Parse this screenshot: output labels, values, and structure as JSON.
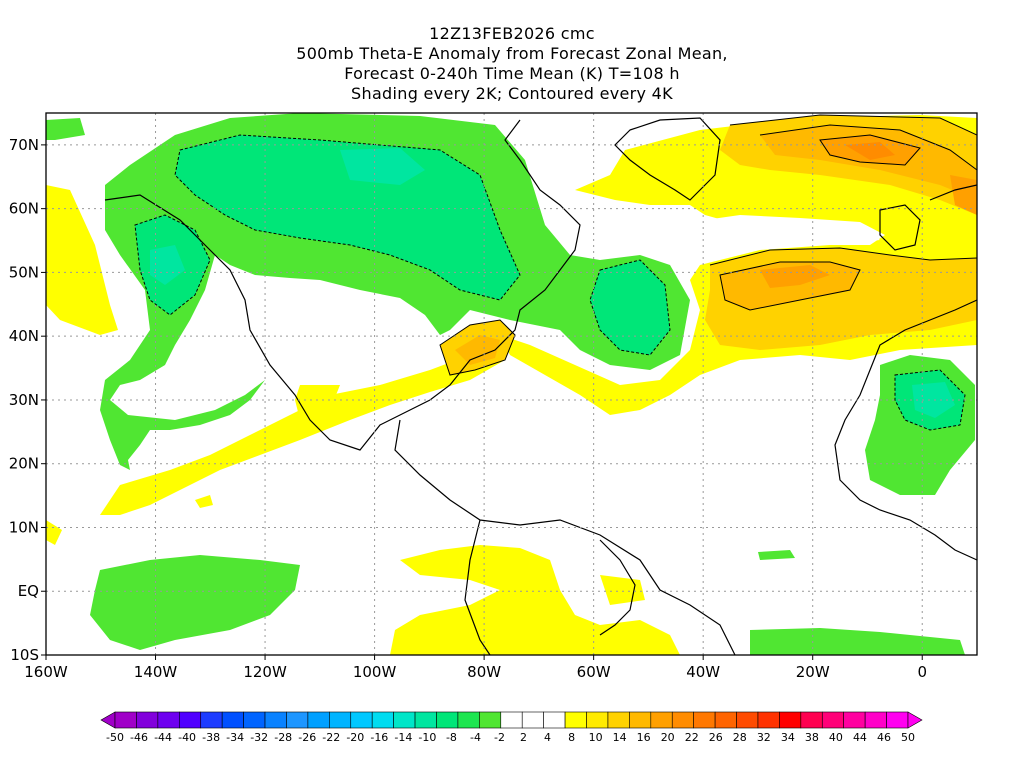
{
  "header": {
    "line1": "12Z13FEB2026 cmc",
    "line2": "500mb Theta-E Anomaly from Forecast Zonal Mean,",
    "line3": "Forecast 0-240h Time Mean (K) T=108 h",
    "line4": "Shading every 2K; Contoured every 4K"
  },
  "map": {
    "lon_labels": [
      "160W",
      "140W",
      "120W",
      "100W",
      "80W",
      "60W",
      "40W",
      "20W",
      "0"
    ],
    "lat_labels": [
      "70N",
      "60N",
      "50N",
      "40N",
      "30N",
      "20N",
      "10N",
      "EQ",
      "10S"
    ],
    "lon_range": [
      -160,
      10
    ],
    "lat_range": [
      -10,
      75
    ]
  },
  "colorbar": {
    "labels": [
      "-50",
      "-46",
      "-44",
      "-40",
      "-38",
      "-34",
      "-32",
      "-28",
      "-26",
      "-22",
      "-20",
      "-16",
      "-14",
      "-10",
      "-8",
      "-4",
      "-2",
      "2",
      "4",
      "8",
      "10",
      "14",
      "16",
      "20",
      "22",
      "26",
      "28",
      "32",
      "34",
      "38",
      "40",
      "44",
      "46",
      "50"
    ],
    "colors": [
      "#a000c8",
      "#8200dc",
      "#6e00f0",
      "#5000ff",
      "#1e3cff",
      "#0050ff",
      "#0064ff",
      "#0a82ff",
      "#1e96ff",
      "#00a0ff",
      "#00b4ff",
      "#00c8ff",
      "#00dcf0",
      "#00e6c8",
      "#00e6a0",
      "#00e678",
      "#1ee650",
      "#50e632",
      "#ffffff",
      "#ffffff",
      "#ffffff",
      "#ffff00",
      "#ffeb00",
      "#ffd200",
      "#ffb900",
      "#ffa000",
      "#ff8c00",
      "#ff7800",
      "#ff6400",
      "#ff4b00",
      "#ff3200",
      "#ff0000",
      "#ff0050",
      "#ff0078",
      "#ff00a0",
      "#ff00c8",
      "#ff00f0"
    ]
  }
}
